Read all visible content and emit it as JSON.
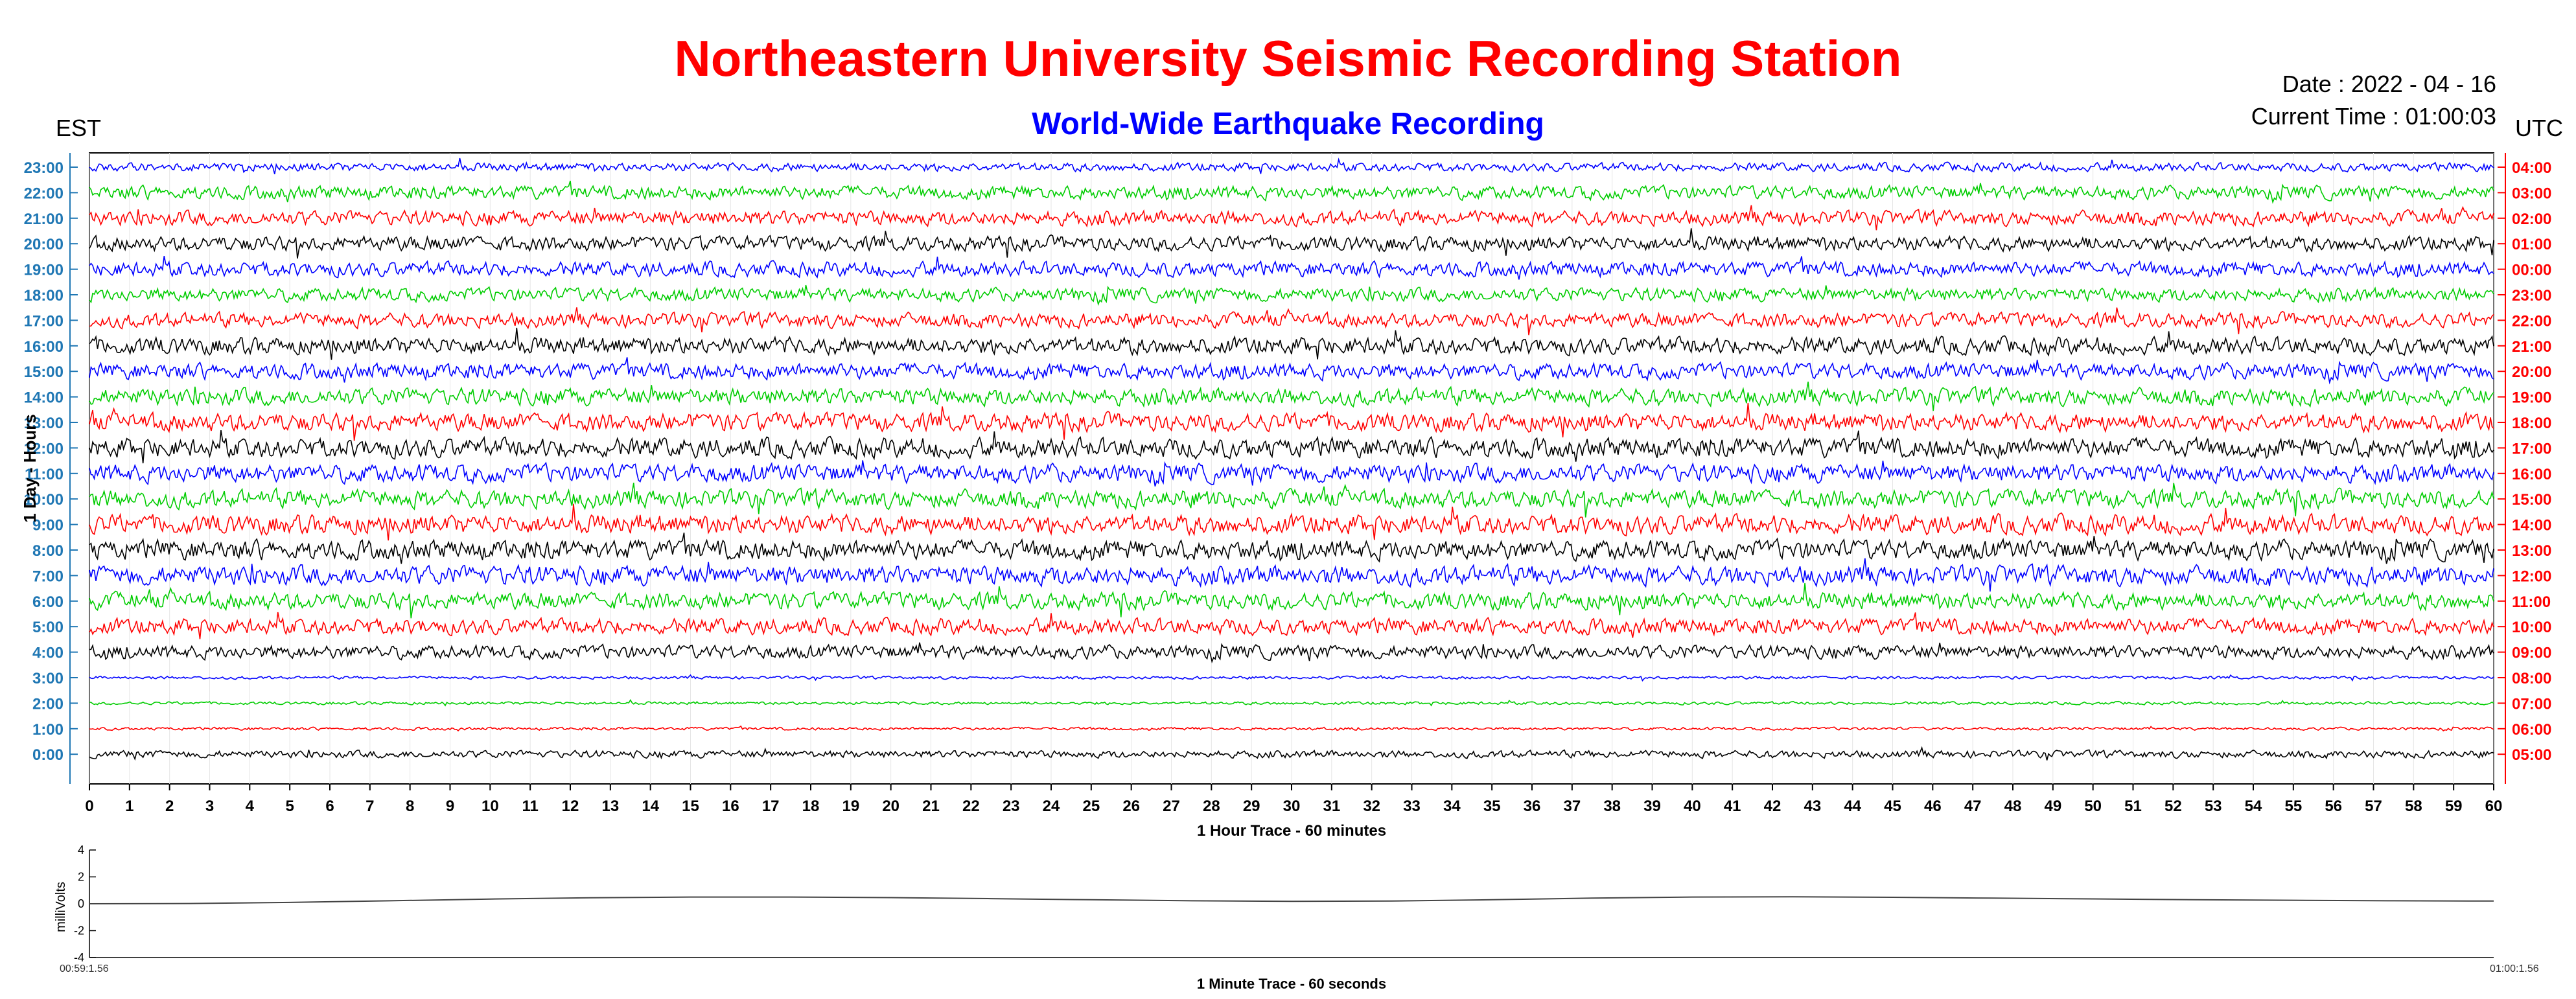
{
  "header": {
    "title": "Northeastern University Seismic Recording Station",
    "subtitle": "World-Wide Earthquake Recording",
    "date": "Date : 2022 - 04 - 16",
    "current_time": "Current Time : 01:00:03",
    "left_zone": "EST",
    "right_zone": "UTC"
  },
  "colors": {
    "title": "#ff0000",
    "subtitle": "#0000ff",
    "est_labels": "#1f77b4",
    "utc_labels": "#ff0000",
    "trace_cycle": [
      "#0000ff",
      "#00cc00",
      "#ff0000",
      "#000000"
    ]
  },
  "chart_data": [
    {
      "type": "line",
      "chart": "helicorder",
      "xlabel": "1 Hour Trace - 60 minutes",
      "ylabel": "1 Day - Hours",
      "xlim": [
        0,
        60
      ],
      "x_ticks": [
        "0",
        "1",
        "2",
        "3",
        "4",
        "5",
        "6",
        "7",
        "8",
        "9",
        "10",
        "11",
        "12",
        "13",
        "14",
        "15",
        "16",
        "17",
        "18",
        "19",
        "20",
        "21",
        "22",
        "23",
        "24",
        "25",
        "26",
        "27",
        "28",
        "29",
        "30",
        "31",
        "32",
        "33",
        "34",
        "35",
        "36",
        "37",
        "38",
        "39",
        "40",
        "41",
        "42",
        "43",
        "44",
        "45",
        "46",
        "47",
        "48",
        "49",
        "50",
        "51",
        "52",
        "53",
        "54",
        "55",
        "56",
        "57",
        "58",
        "59",
        "60"
      ],
      "est_ticks": [
        "23:00",
        "22:00",
        "21:00",
        "20:00",
        "19:00",
        "18:00",
        "17:00",
        "16:00",
        "15:00",
        "14:00",
        "13:00",
        "12:00",
        "11:00",
        "10:00",
        "9:00",
        "8:00",
        "7:00",
        "6:00",
        "5:00",
        "4:00",
        "3:00",
        "2:00",
        "1:00",
        "0:00"
      ],
      "utc_ticks": [
        "04:00",
        "03:00",
        "02:00",
        "01:00",
        "00:00",
        "23:00",
        "22:00",
        "21:00",
        "20:00",
        "19:00",
        "18:00",
        "17:00",
        "16:00",
        "15:00",
        "14:00",
        "13:00",
        "12:00",
        "11:00",
        "10:00",
        "09:00",
        "08:00",
        "07:00",
        "06:00",
        "05:00"
      ],
      "trace_amplitude_per_row": [
        0.35,
        0.55,
        0.6,
        0.6,
        0.6,
        0.55,
        0.6,
        0.7,
        0.65,
        0.7,
        0.75,
        0.8,
        0.75,
        0.75,
        0.8,
        0.8,
        0.8,
        0.7,
        0.65,
        0.55,
        0.12,
        0.12,
        0.12,
        0.3
      ],
      "grid": true
    },
    {
      "type": "line",
      "chart": "minute-trace",
      "xlabel": "1 Minute Trace  - 60 seconds",
      "ylabel": "milliVolts",
      "ylim": [
        -4,
        4
      ],
      "y_ticks": [
        "4",
        "2",
        "0",
        "-2",
        "-4"
      ],
      "x_start_label": "00:59:1.56",
      "x_end_label": "01:00:1.56",
      "points": [
        0,
        0.02,
        0.1,
        0.22,
        0.35,
        0.45,
        0.5,
        0.5,
        0.46,
        0.38,
        0.3,
        0.22,
        0.18,
        0.2,
        0.3,
        0.42,
        0.5,
        0.52,
        0.48,
        0.42,
        0.36,
        0.3,
        0.26,
        0.22,
        0.2
      ]
    }
  ]
}
